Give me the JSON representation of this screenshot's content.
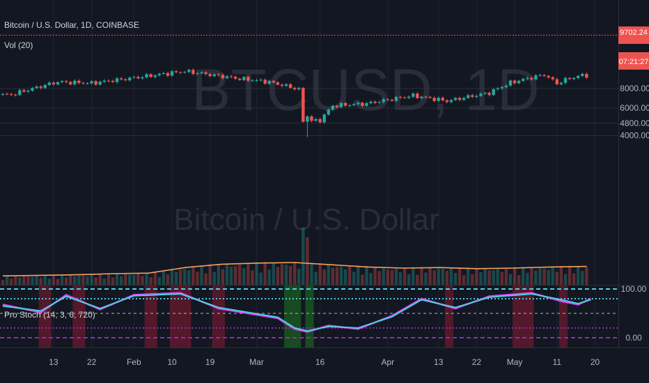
{
  "header": {
    "symbol_title": "Bitcoin / U.S. Dollar, 1D, COINBASE",
    "volume_label": "Vol (20)",
    "indicator_label": "Pro Stoch (14, 3, 6, 720)"
  },
  "watermark": {
    "symbol": "BTCUSD, 1D",
    "name": "Bitcoin / U.S. Dollar"
  },
  "price_badge": {
    "price": "9702.24",
    "countdown": "07:21:27"
  },
  "colors": {
    "background": "#131722",
    "up": "#26a69a",
    "down": "#ef5350",
    "volume_ma": "#f7a35c",
    "k_line": "#e040fb",
    "d_line": "#4dd0e1",
    "band_upper": "#4dd0e1",
    "band_lower": "#9c27b0"
  },
  "chart_data": [
    {
      "type": "candlestick",
      "title": "Bitcoin / U.S. Dollar, 1D, COINBASE",
      "y_scale": "log",
      "ylim": [
        3600,
        10800
      ],
      "y_ticks": [
        4000,
        4800,
        6000,
        8000
      ],
      "y_tick_labels": [
        "4000.00",
        "4800.00",
        "6000.00",
        "8000.00"
      ],
      "x_tick_labels": [
        "13",
        "22",
        "Feb",
        "10",
        "19",
        "Mar",
        "16",
        "Apr",
        "13",
        "22",
        "May",
        "11",
        "20"
      ],
      "last_price": 9702.24,
      "key_points": [
        {
          "date": "2020-01-03",
          "close": 7300
        },
        {
          "date": "2020-01-14",
          "close": 8800
        },
        {
          "date": "2020-01-22",
          "close": 8650
        },
        {
          "date": "2020-02-01",
          "close": 9350
        },
        {
          "date": "2020-02-13",
          "close": 10300
        },
        {
          "date": "2020-02-25",
          "close": 9300
        },
        {
          "date": "2020-03-04",
          "close": 8800
        },
        {
          "date": "2020-03-11",
          "close": 7900
        },
        {
          "date": "2020-03-12",
          "close": 4900
        },
        {
          "date": "2020-03-16",
          "close": 5000
        },
        {
          "date": "2020-03-19",
          "close": 6200
        },
        {
          "date": "2020-03-27",
          "close": 6400
        },
        {
          "date": "2020-04-07",
          "close": 7200
        },
        {
          "date": "2020-04-15",
          "close": 6650
        },
        {
          "date": "2020-04-25",
          "close": 7500
        },
        {
          "date": "2020-04-30",
          "close": 8700
        },
        {
          "date": "2020-05-08",
          "close": 9800
        },
        {
          "date": "2020-05-11",
          "close": 8600
        },
        {
          "date": "2020-05-14",
          "close": 9300
        },
        {
          "date": "2020-05-17",
          "close": 9700
        }
      ]
    },
    {
      "type": "bar",
      "title": "Vol (20)",
      "series": [
        {
          "name": "Vol (20)",
          "kind": "moving-average",
          "values_relative": [
            0.32,
            0.34,
            0.36,
            0.4,
            0.42,
            0.62,
            0.74,
            0.78,
            0.8,
            0.72,
            0.64,
            0.6,
            0.62,
            0.58,
            0.6,
            0.64,
            0.66
          ]
        }
      ],
      "date_range": [
        "2020-01-02",
        "2020-05-18"
      ]
    },
    {
      "type": "line",
      "title": "Pro Stoch (14, 3, 6, 720)",
      "ylim": [
        0,
        100
      ],
      "y_tick_labels": [
        "100.00",
        "0.00"
      ],
      "levels": [
        100,
        80,
        50,
        20,
        0
      ],
      "series": [
        {
          "name": "K",
          "points": [
            [
              "2020-01-01",
              68
            ],
            [
              "2020-01-10",
              52
            ],
            [
              "2020-01-16",
              88
            ],
            [
              "2020-01-24",
              58
            ],
            [
              "2020-02-01",
              88
            ],
            [
              "2020-02-12",
              92
            ],
            [
              "2020-02-21",
              60
            ],
            [
              "2020-03-06",
              40
            ],
            [
              "2020-03-10",
              18
            ],
            [
              "2020-03-13",
              12
            ],
            [
              "2020-03-18",
              25
            ],
            [
              "2020-03-25",
              18
            ],
            [
              "2020-04-02",
              45
            ],
            [
              "2020-04-09",
              80
            ],
            [
              "2020-04-17",
              60
            ],
            [
              "2020-04-25",
              85
            ],
            [
              "2020-05-05",
              92
            ],
            [
              "2020-05-12",
              75
            ],
            [
              "2020-05-16",
              68
            ],
            [
              "2020-05-19",
              80
            ]
          ]
        },
        {
          "name": "D",
          "points": [
            [
              "2020-01-01",
              65
            ],
            [
              "2020-01-10",
              55
            ],
            [
              "2020-01-16",
              85
            ],
            [
              "2020-01-24",
              60
            ],
            [
              "2020-02-01",
              86
            ],
            [
              "2020-02-12",
              90
            ],
            [
              "2020-02-21",
              62
            ],
            [
              "2020-03-06",
              42
            ],
            [
              "2020-03-10",
              20
            ],
            [
              "2020-03-13",
              14
            ],
            [
              "2020-03-18",
              23
            ],
            [
              "2020-03-25",
              20
            ],
            [
              "2020-04-02",
              43
            ],
            [
              "2020-04-09",
              78
            ],
            [
              "2020-04-17",
              62
            ],
            [
              "2020-04-25",
              83
            ],
            [
              "2020-05-05",
              90
            ],
            [
              "2020-05-12",
              78
            ],
            [
              "2020-05-16",
              70
            ],
            [
              "2020-05-19",
              78
            ]
          ]
        }
      ],
      "zones": [
        {
          "kind": "overbought",
          "from": "2020-01-10",
          "to": "2020-01-12"
        },
        {
          "kind": "overbought",
          "from": "2020-01-18",
          "to": "2020-01-20"
        },
        {
          "kind": "overbought",
          "from": "2020-02-04",
          "to": "2020-02-06"
        },
        {
          "kind": "overbought",
          "from": "2020-02-10",
          "to": "2020-02-14"
        },
        {
          "kind": "overbought",
          "from": "2020-02-20",
          "to": "2020-02-22"
        },
        {
          "kind": "oversold",
          "from": "2020-03-08",
          "to": "2020-03-11"
        },
        {
          "kind": "oversold",
          "from": "2020-03-13",
          "to": "2020-03-14"
        },
        {
          "kind": "overbought",
          "from": "2020-04-15",
          "to": "2020-04-16"
        },
        {
          "kind": "overbought",
          "from": "2020-05-01",
          "to": "2020-05-05"
        },
        {
          "kind": "overbought",
          "from": "2020-05-12",
          "to": "2020-05-13"
        }
      ]
    }
  ]
}
